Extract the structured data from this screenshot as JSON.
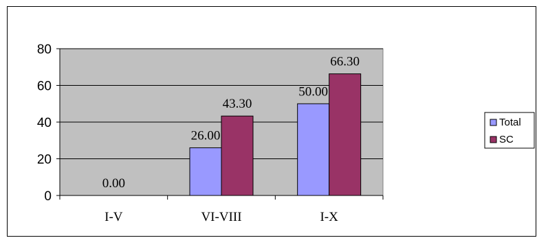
{
  "chart_data": {
    "type": "bar",
    "categories": [
      "I-V",
      "VI-VIII",
      "I-X"
    ],
    "series": [
      {
        "name": "Total",
        "values": [
          0.0,
          26.0,
          50.0
        ],
        "color": "#9999FF"
      },
      {
        "name": "SC",
        "values": [
          0.0,
          43.3,
          66.3
        ],
        "color": "#993366"
      }
    ],
    "data_labels": [
      {
        "category": "I-V",
        "text": "0.00"
      },
      {
        "category": "VI-VIII",
        "series": "Total",
        "text": "26.00"
      },
      {
        "category": "VI-VIII",
        "series": "SC",
        "text": "43.30"
      },
      {
        "category": "I-X",
        "series": "Total",
        "text": "50.00"
      },
      {
        "category": "I-X",
        "series": "SC",
        "text": "66.30"
      }
    ],
    "title": "",
    "xlabel": "",
    "ylabel": "",
    "ylim": [
      0,
      80
    ],
    "yticks": [
      0,
      20,
      40,
      60,
      80
    ],
    "grid": true,
    "legend": "right",
    "plot_background": "#C0C0C0"
  }
}
